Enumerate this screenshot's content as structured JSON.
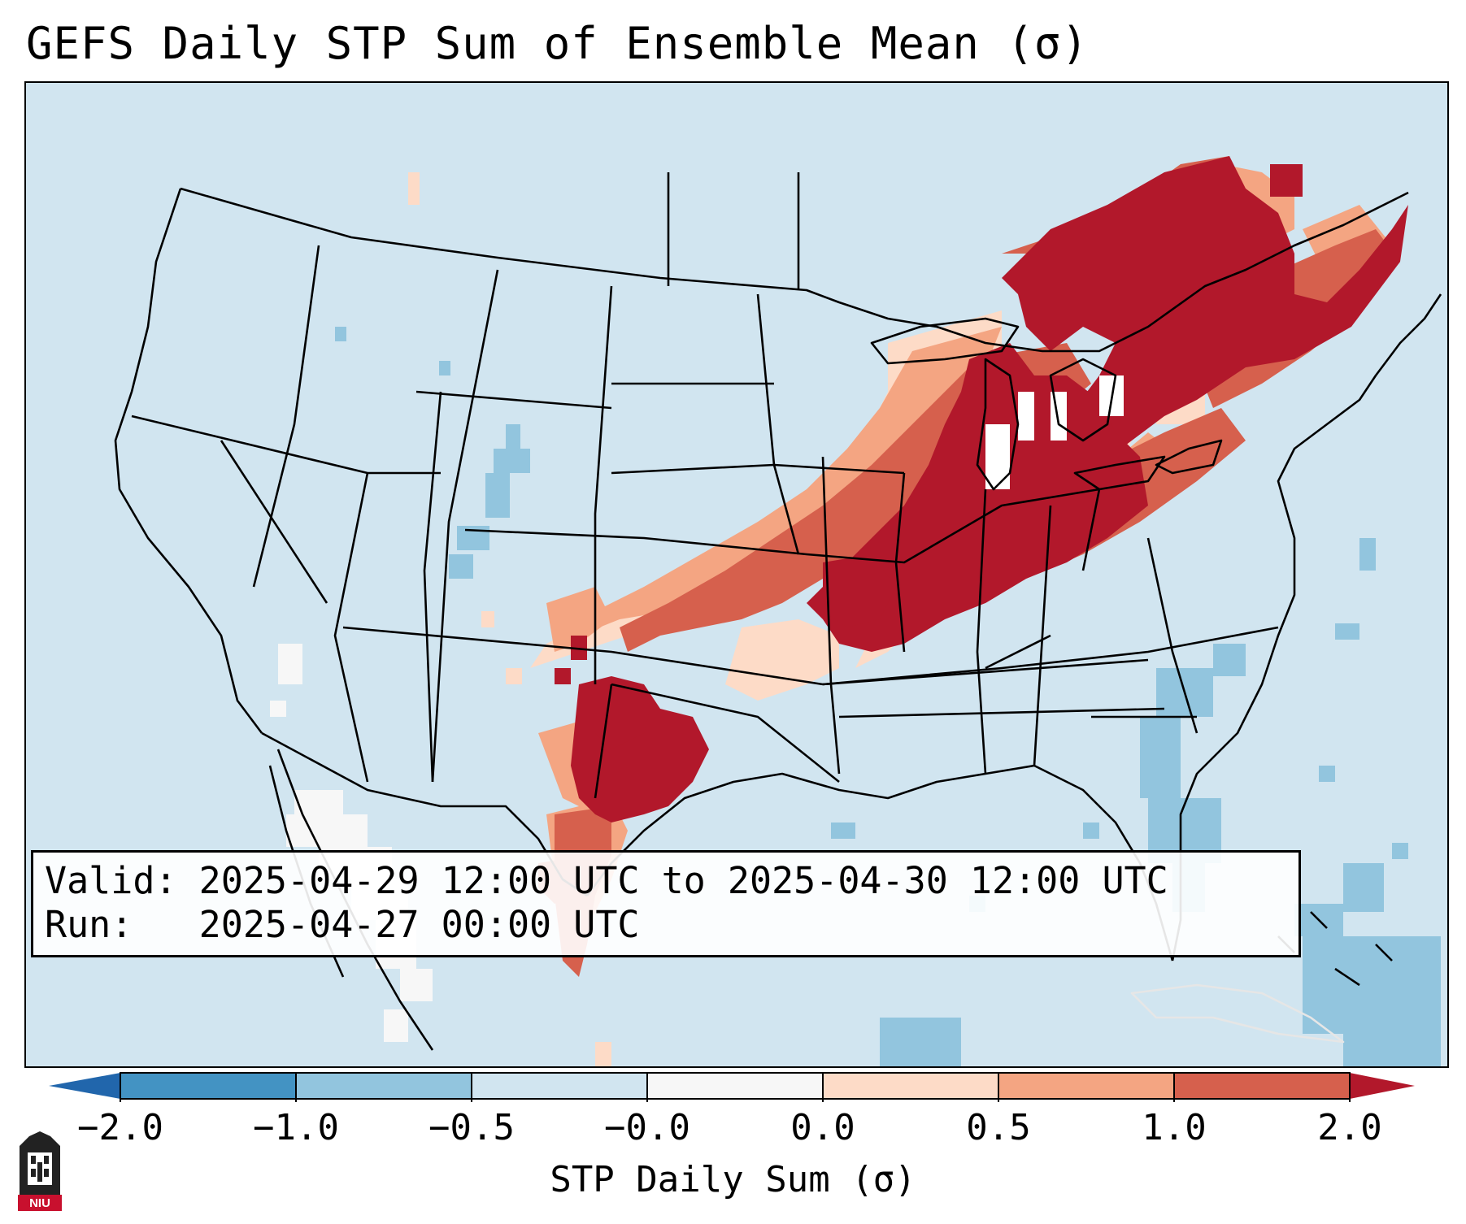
{
  "title": "GEFS Daily STP Sum of Ensemble Mean (σ)",
  "info": {
    "valid_label": "Valid:",
    "valid_value": "2025-04-29 12:00 UTC to 2025-04-30 12:00 UTC",
    "run_label": "Run:",
    "run_value": "2025-04-27 00:00 UTC"
  },
  "colorbar": {
    "label": "STP Daily Sum (σ)",
    "ticks": [
      "−2.0",
      "−1.0",
      "−0.5",
      "−0.0",
      "0.0",
      "0.5",
      "1.0",
      "2.0"
    ],
    "colors": [
      "#4393c3",
      "#92c5de",
      "#d1e5f0",
      "#f7f7f7",
      "#fddbc7",
      "#f4a582",
      "#d6604d",
      "#b2182b"
    ],
    "extend_low_color": "#2166ac",
    "extend_high_color": "#b2182b"
  },
  "map": {
    "background_color": "#d1e5f0",
    "regions": [
      {
        "name": "strong-positive-band-great-lakes",
        "level": "2.0"
      },
      {
        "name": "strong-positive-band-ohio-valley",
        "level": "2.0"
      },
      {
        "name": "strong-positive-band-texas-oklahoma",
        "level": "2.0"
      },
      {
        "name": "moderate-positive-band",
        "level": "1.0"
      },
      {
        "name": "weak-positive-band",
        "level": "0.5"
      },
      {
        "name": "slight-negative-southeast-atlantic",
        "level": "-0.5"
      },
      {
        "name": "near-zero-mexico",
        "level": "-0.0"
      }
    ]
  },
  "logo": {
    "text": "NIU",
    "color": "#c8102e"
  }
}
